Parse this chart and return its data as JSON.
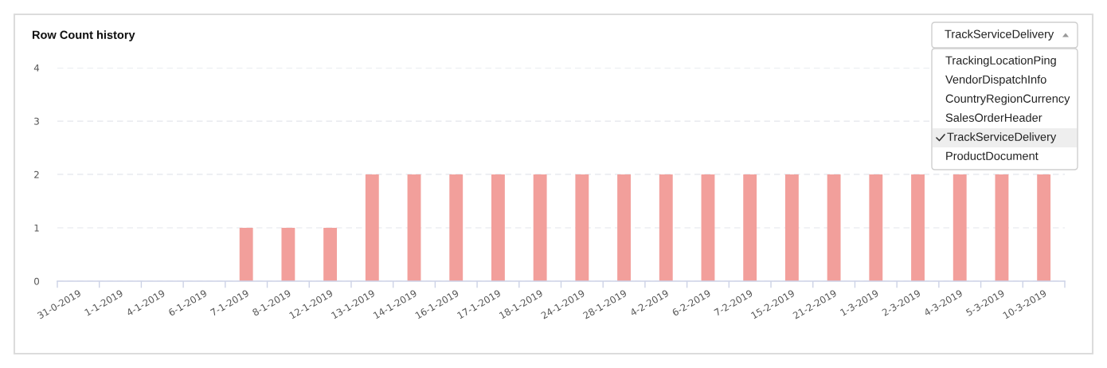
{
  "chart_data": {
    "type": "bar",
    "title": "Row Count history",
    "categories": [
      "31-0-2019",
      "1-1-2019",
      "4-1-2019",
      "6-1-2019",
      "7-1-2019",
      "8-1-2019",
      "12-1-2019",
      "13-1-2019",
      "14-1-2019",
      "16-1-2019",
      "17-1-2019",
      "18-1-2019",
      "24-1-2019",
      "28-1-2019",
      "4-2-2019",
      "6-2-2019",
      "7-2-2019",
      "15-2-2019",
      "21-2-2019",
      "1-3-2019",
      "2-3-2019",
      "4-3-2019",
      "5-3-2019",
      "10-3-2019"
    ],
    "values": [
      0,
      0,
      0,
      0,
      1,
      1,
      1,
      2,
      2,
      2,
      2,
      2,
      2,
      2,
      2,
      2,
      2,
      2,
      2,
      2,
      2,
      2,
      2,
      2
    ],
    "color": "#f29f9b",
    "ylim": [
      0,
      4
    ],
    "yticks": [
      0,
      1,
      2,
      3,
      4
    ],
    "grid": "y",
    "annotations": [
      "TrackServiceDelivery",
      "TrackingLocationPing",
      "VendorDispatchInfo",
      "CountryRegionCurrency",
      "SalesOrderHeader",
      "TrackServiceDelivery",
      "ProductDocument"
    ]
  }
}
